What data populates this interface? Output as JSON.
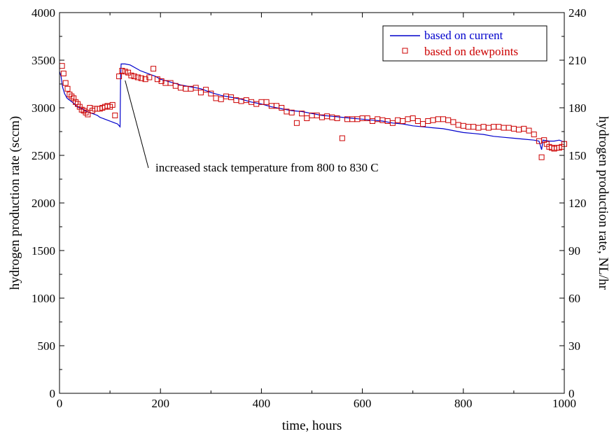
{
  "chart_data": {
    "type": "scatter",
    "xlabel": "time, hours",
    "ylabel_left": "hydrogen production rate (sccm)",
    "ylabel_right": "hydrogen production rate, NL/hr",
    "xlim": [
      0,
      1000
    ],
    "ylim_left": [
      0,
      4000
    ],
    "ylim_right": [
      0,
      240
    ],
    "x_ticks": [
      "0",
      "200",
      "400",
      "600",
      "800",
      "1000"
    ],
    "y_ticks_left": [
      "0",
      "500",
      "1000",
      "1500",
      "2000",
      "2500",
      "3000",
      "3500",
      "4000"
    ],
    "y_ticks_right": [
      "0",
      "30",
      "60",
      "90",
      "120",
      "150",
      "180",
      "210",
      "240"
    ],
    "grid": false,
    "legend_position": "top-right",
    "annotation": {
      "text": "increased stack temperature from 800 to 830 C",
      "x": 130,
      "y": 3360
    },
    "colors": {
      "current": "#0000cc",
      "dewpoints": "#cc0000"
    },
    "series": [
      {
        "name": "based on current",
        "style": "line",
        "points": [
          [
            0,
            3380
          ],
          [
            3,
            3330
          ],
          [
            6,
            3220
          ],
          [
            10,
            3150
          ],
          [
            15,
            3100
          ],
          [
            20,
            3080
          ],
          [
            25,
            3060
          ],
          [
            30,
            3040
          ],
          [
            35,
            3010
          ],
          [
            40,
            3000
          ],
          [
            45,
            2990
          ],
          [
            50,
            2970
          ],
          [
            55,
            2960
          ],
          [
            60,
            2950
          ],
          [
            65,
            2940
          ],
          [
            70,
            2930
          ],
          [
            75,
            2920
          ],
          [
            80,
            2900
          ],
          [
            85,
            2890
          ],
          [
            90,
            2880
          ],
          [
            95,
            2870
          ],
          [
            100,
            2860
          ],
          [
            105,
            2850
          ],
          [
            110,
            2840
          ],
          [
            115,
            2830
          ],
          [
            120,
            2800
          ],
          [
            121,
            3300
          ],
          [
            122,
            3460
          ],
          [
            130,
            3460
          ],
          [
            140,
            3450
          ],
          [
            150,
            3420
          ],
          [
            160,
            3390
          ],
          [
            170,
            3370
          ],
          [
            180,
            3350
          ],
          [
            190,
            3330
          ],
          [
            200,
            3300
          ],
          [
            220,
            3270
          ],
          [
            240,
            3240
          ],
          [
            260,
            3220
          ],
          [
            280,
            3200
          ],
          [
            300,
            3160
          ],
          [
            320,
            3130
          ],
          [
            340,
            3110
          ],
          [
            360,
            3090
          ],
          [
            380,
            3060
          ],
          [
            400,
            3040
          ],
          [
            420,
            3010
          ],
          [
            440,
            2990
          ],
          [
            460,
            2970
          ],
          [
            480,
            2960
          ],
          [
            500,
            2940
          ],
          [
            520,
            2920
          ],
          [
            540,
            2910
          ],
          [
            560,
            2900
          ],
          [
            580,
            2890
          ],
          [
            600,
            2880
          ],
          [
            620,
            2870
          ],
          [
            640,
            2860
          ],
          [
            660,
            2840
          ],
          [
            680,
            2830
          ],
          [
            700,
            2810
          ],
          [
            720,
            2800
          ],
          [
            740,
            2790
          ],
          [
            760,
            2780
          ],
          [
            780,
            2760
          ],
          [
            800,
            2740
          ],
          [
            820,
            2730
          ],
          [
            840,
            2720
          ],
          [
            860,
            2700
          ],
          [
            880,
            2690
          ],
          [
            900,
            2680
          ],
          [
            920,
            2670
          ],
          [
            940,
            2660
          ],
          [
            950,
            2650
          ],
          [
            955,
            2560
          ],
          [
            958,
            2660
          ],
          [
            970,
            2650
          ],
          [
            980,
            2650
          ],
          [
            990,
            2660
          ],
          [
            1000,
            2640
          ]
        ]
      },
      {
        "name": "based on dewpoints",
        "style": "markers",
        "points": [
          [
            5,
            3440
          ],
          [
            8,
            3360
          ],
          [
            12,
            3260
          ],
          [
            16,
            3200
          ],
          [
            20,
            3140
          ],
          [
            24,
            3120
          ],
          [
            28,
            3100
          ],
          [
            32,
            3060
          ],
          [
            36,
            3040
          ],
          [
            40,
            3010
          ],
          [
            44,
            2980
          ],
          [
            48,
            2970
          ],
          [
            52,
            2950
          ],
          [
            56,
            2930
          ],
          [
            60,
            3000
          ],
          [
            65,
            2970
          ],
          [
            70,
            2990
          ],
          [
            75,
            2990
          ],
          [
            80,
            2990
          ],
          [
            85,
            3000
          ],
          [
            90,
            3010
          ],
          [
            95,
            3020
          ],
          [
            100,
            3010
          ],
          [
            105,
            3030
          ],
          [
            110,
            2920
          ],
          [
            118,
            3330
          ],
          [
            124,
            3390
          ],
          [
            130,
            3380
          ],
          [
            136,
            3370
          ],
          [
            142,
            3340
          ],
          [
            148,
            3330
          ],
          [
            155,
            3320
          ],
          [
            162,
            3310
          ],
          [
            170,
            3300
          ],
          [
            178,
            3320
          ],
          [
            186,
            3410
          ],
          [
            194,
            3300
          ],
          [
            202,
            3280
          ],
          [
            210,
            3260
          ],
          [
            220,
            3260
          ],
          [
            230,
            3230
          ],
          [
            240,
            3210
          ],
          [
            250,
            3200
          ],
          [
            260,
            3200
          ],
          [
            270,
            3210
          ],
          [
            280,
            3160
          ],
          [
            290,
            3190
          ],
          [
            300,
            3150
          ],
          [
            310,
            3100
          ],
          [
            320,
            3090
          ],
          [
            330,
            3120
          ],
          [
            340,
            3110
          ],
          [
            350,
            3080
          ],
          [
            360,
            3070
          ],
          [
            370,
            3080
          ],
          [
            380,
            3060
          ],
          [
            390,
            3040
          ],
          [
            400,
            3060
          ],
          [
            410,
            3060
          ],
          [
            420,
            3020
          ],
          [
            430,
            3020
          ],
          [
            440,
            3000
          ],
          [
            450,
            2960
          ],
          [
            460,
            2950
          ],
          [
            470,
            2840
          ],
          [
            480,
            2940
          ],
          [
            490,
            2890
          ],
          [
            500,
            2920
          ],
          [
            510,
            2920
          ],
          [
            520,
            2900
          ],
          [
            530,
            2910
          ],
          [
            540,
            2900
          ],
          [
            550,
            2890
          ],
          [
            560,
            2680
          ],
          [
            570,
            2880
          ],
          [
            580,
            2880
          ],
          [
            590,
            2880
          ],
          [
            600,
            2890
          ],
          [
            610,
            2890
          ],
          [
            620,
            2860
          ],
          [
            630,
            2880
          ],
          [
            640,
            2870
          ],
          [
            650,
            2860
          ],
          [
            660,
            2840
          ],
          [
            670,
            2870
          ],
          [
            680,
            2860
          ],
          [
            690,
            2880
          ],
          [
            700,
            2890
          ],
          [
            710,
            2860
          ],
          [
            720,
            2830
          ],
          [
            730,
            2860
          ],
          [
            740,
            2870
          ],
          [
            750,
            2880
          ],
          [
            760,
            2880
          ],
          [
            770,
            2870
          ],
          [
            780,
            2850
          ],
          [
            790,
            2820
          ],
          [
            800,
            2810
          ],
          [
            810,
            2800
          ],
          [
            820,
            2800
          ],
          [
            830,
            2790
          ],
          [
            840,
            2800
          ],
          [
            850,
            2790
          ],
          [
            860,
            2800
          ],
          [
            870,
            2800
          ],
          [
            880,
            2790
          ],
          [
            890,
            2790
          ],
          [
            900,
            2780
          ],
          [
            910,
            2770
          ],
          [
            920,
            2780
          ],
          [
            930,
            2760
          ],
          [
            940,
            2720
          ],
          [
            950,
            2650
          ],
          [
            955,
            2480
          ],
          [
            960,
            2660
          ],
          [
            965,
            2620
          ],
          [
            970,
            2590
          ],
          [
            975,
            2580
          ],
          [
            980,
            2570
          ],
          [
            985,
            2580
          ],
          [
            990,
            2580
          ],
          [
            995,
            2590
          ],
          [
            1000,
            2620
          ]
        ]
      }
    ]
  }
}
